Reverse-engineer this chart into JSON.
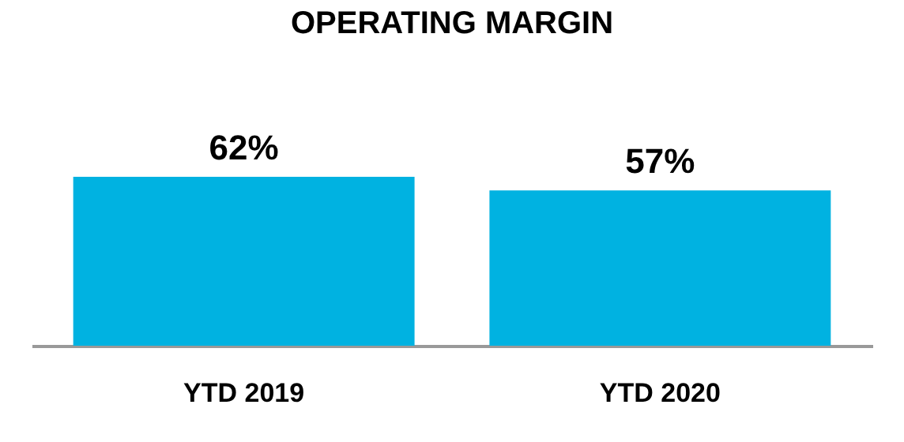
{
  "chart_data": {
    "type": "bar",
    "title": "OPERATING MARGIN",
    "categories": [
      "YTD 2019",
      "YTD 2020"
    ],
    "values": [
      62,
      57
    ],
    "value_labels": [
      "62%",
      "57%"
    ],
    "color": "#00b2e1"
  }
}
